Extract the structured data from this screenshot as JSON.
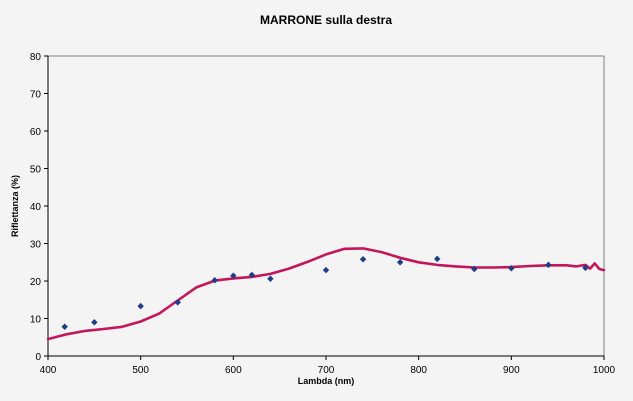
{
  "chart_data": {
    "type": "line",
    "title": "MARRONE sulla destra",
    "xlabel": "Lambda (nm)",
    "ylabel": "Riflettanza (%)",
    "xlim": [
      400,
      1000
    ],
    "ylim": [
      0,
      80
    ],
    "x_ticks": [
      "400",
      "500",
      "600",
      "700",
      "800",
      "900",
      "1000"
    ],
    "y_ticks": [
      "0",
      "10",
      "20",
      "30",
      "40",
      "50",
      "60",
      "70",
      "80"
    ],
    "grid": false,
    "legend": "none",
    "colors": {
      "line": "#c2185b",
      "points": "#1f3c8c",
      "axis": "#000000",
      "plot_border": "#808080"
    },
    "series": [
      {
        "style": "scatter",
        "points": [
          [
            418,
            7.8
          ],
          [
            450,
            9
          ],
          [
            500,
            13.3
          ],
          [
            540,
            14.3
          ],
          [
            580,
            20.2
          ],
          [
            600,
            21.4
          ],
          [
            620,
            21.6
          ],
          [
            640,
            20.6
          ],
          [
            700,
            22.9
          ],
          [
            740,
            25.8
          ],
          [
            780,
            25
          ],
          [
            820,
            25.9
          ],
          [
            860,
            23.2
          ],
          [
            900,
            23.4
          ],
          [
            940,
            24.3
          ],
          [
            980,
            23.5
          ]
        ]
      },
      {
        "style": "line",
        "points": [
          [
            400,
            4.5
          ],
          [
            420,
            5.8
          ],
          [
            440,
            6.7
          ],
          [
            460,
            7.2
          ],
          [
            480,
            7.8
          ],
          [
            500,
            9.2
          ],
          [
            520,
            11.3
          ],
          [
            540,
            14.8
          ],
          [
            560,
            18.3
          ],
          [
            580,
            20.1
          ],
          [
            600,
            20.7
          ],
          [
            620,
            21.1
          ],
          [
            640,
            21.9
          ],
          [
            660,
            23.3
          ],
          [
            680,
            25.1
          ],
          [
            700,
            27.1
          ],
          [
            720,
            28.6
          ],
          [
            740,
            28.7
          ],
          [
            760,
            27.7
          ],
          [
            780,
            26.2
          ],
          [
            800,
            25
          ],
          [
            820,
            24.3
          ],
          [
            840,
            23.9
          ],
          [
            860,
            23.6
          ],
          [
            880,
            23.6
          ],
          [
            900,
            23.7
          ],
          [
            920,
            24
          ],
          [
            940,
            24.2
          ],
          [
            960,
            24.2
          ],
          [
            970,
            23.9
          ],
          [
            980,
            24.3
          ],
          [
            985,
            23.3
          ],
          [
            990,
            24.7
          ],
          [
            995,
            23.2
          ],
          [
            1000,
            22.9
          ]
        ]
      }
    ]
  }
}
